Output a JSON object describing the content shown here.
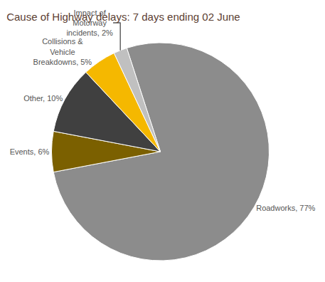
{
  "chart_data": {
    "type": "pie",
    "title": "Cause of Highway delays: 7 days ending 02 June",
    "categories": [
      "Roadworks, 77%",
      "Events, 6%",
      "Other, 10%",
      "Collisions &\nVehicle\nBreakdowns, 5%",
      "Impact of\nMotorway\nincidents, 2%"
    ],
    "values": [
      77,
      6,
      10,
      5,
      2
    ],
    "colors": [
      "#8C8C8C",
      "#7B6000",
      "#404040",
      "#F5B800",
      "#C0C0C0"
    ]
  }
}
